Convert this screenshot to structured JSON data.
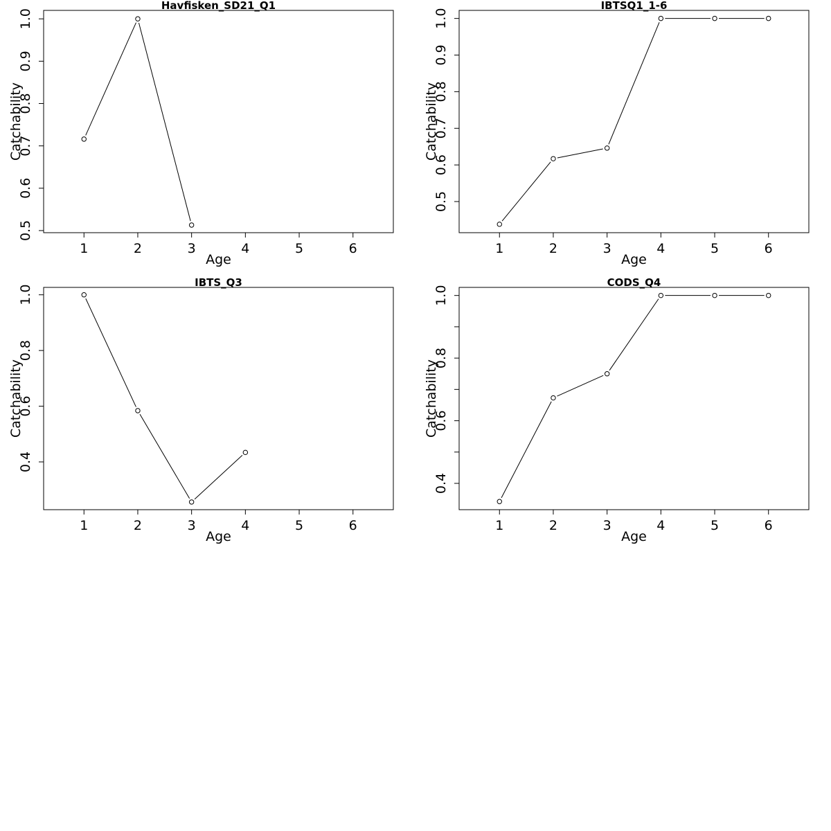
{
  "chart_data": [
    {
      "type": "line",
      "title": "Havfisken_SD21_Q1",
      "xlabel": "Age",
      "ylabel": "Catchability",
      "xlim": [
        0.25,
        6.75
      ],
      "ylim": [
        0.495,
        1.02
      ],
      "x_ticks": [
        1,
        2,
        3,
        4,
        5,
        6
      ],
      "y_ticks": [
        0.5,
        0.6,
        0.7,
        0.8,
        0.9,
        1.0
      ],
      "y_tick_labels": [
        "0.5",
        "0.6",
        "0.7",
        "0.8",
        "0.9",
        "1.0"
      ],
      "x": [
        1,
        2,
        3
      ],
      "values": [
        0.716,
        1.0,
        0.513
      ],
      "grid": false
    },
    {
      "type": "line",
      "title": "IBTSQ1_1-6",
      "xlabel": "Age",
      "ylabel": "Catchability",
      "xlim": [
        0.25,
        6.75
      ],
      "ylim": [
        0.415,
        1.022
      ],
      "x_ticks": [
        1,
        2,
        3,
        4,
        5,
        6
      ],
      "y_ticks": [
        0.5,
        0.6,
        0.7,
        0.8,
        0.9,
        1.0
      ],
      "y_tick_labels": [
        "0.5",
        "0.6",
        "0.7",
        "0.8",
        "0.9",
        "1.0"
      ],
      "x": [
        1,
        2,
        3,
        4,
        5,
        6
      ],
      "values": [
        0.438,
        0.617,
        0.646,
        1.0,
        1.0,
        1.0
      ],
      "grid": false
    },
    {
      "type": "line",
      "title": "IBTS_Q3",
      "xlabel": "Age",
      "ylabel": "Catchability",
      "xlim": [
        0.25,
        6.75
      ],
      "ylim": [
        0.2284,
        1.0266
      ],
      "x_ticks": [
        1,
        2,
        3,
        4,
        5,
        6
      ],
      "y_ticks": [
        0.4,
        0.6,
        0.8,
        1.0
      ],
      "y_tick_labels": [
        "0.4",
        "0.6",
        "0.8",
        "1.0"
      ],
      "x": [
        1,
        2,
        3,
        4
      ],
      "values": [
        1.0,
        0.584,
        0.256,
        0.434
      ],
      "grid": false
    },
    {
      "type": "line",
      "title": "CODS_Q4",
      "xlabel": "Age",
      "ylabel": "Catchability",
      "xlim": [
        0.25,
        6.75
      ],
      "ylim": [
        0.316,
        1.0258
      ],
      "x_ticks": [
        1,
        2,
        3,
        4,
        5,
        6
      ],
      "y_ticks": [
        0.4,
        0.5,
        0.6,
        0.7,
        0.8,
        0.9,
        1.0
      ],
      "y_tick_labels": [
        "0.4",
        "",
        "0.6",
        "",
        "0.8",
        "",
        "1.0"
      ],
      "x": [
        1,
        2,
        3,
        4,
        5,
        6
      ],
      "values": [
        0.342,
        0.673,
        0.75,
        1.0,
        1.0,
        1.0
      ],
      "grid": false
    }
  ]
}
